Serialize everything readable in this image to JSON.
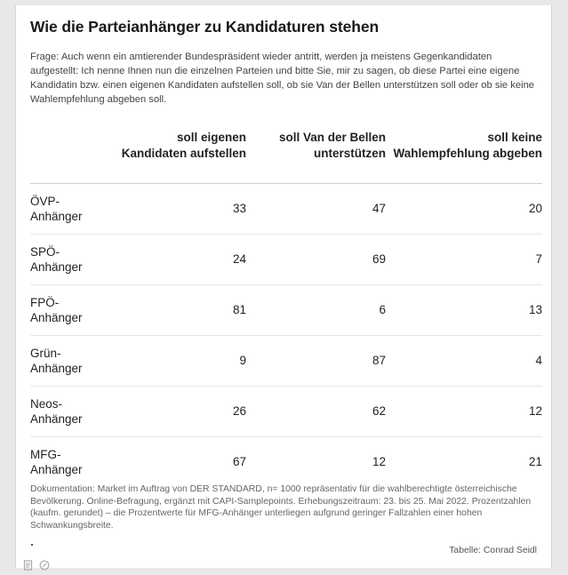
{
  "title": "Wie die Parteianhänger zu Kandidaturen stehen",
  "question": "Frage: Auch wenn ein amtierender Bundespräsident wieder antritt, werden ja meistens Gegenkandidaten aufgestellt: Ich nenne Ihnen nun die einzelnen Parteien und bitte Sie, mir zu sagen, ob diese Partei eine eigene Kandidatin bzw. einen eigenen Kandidaten aufstellen soll, ob sie Van der Bellen unterstützen soll oder ob sie keine Wahlempfehlung abgeben soll.",
  "documentation": "Dokumentation: Market im Auftrag von DER STANDARD, n= 1000 repräsentativ für die wahlberechtigte österreichische Bevölkerung. Online-Befragung, ergänzt mit CAPI-Samplepoints. Erhebungszeitraum: 23. bis 25. Mai 2022. Prozentzahlen (kaufm. gerundet) – die Prozentwerte für MFG-Anhänger unterliegen aufgrund geringer Fallzahlen einer hohen Schwankungsbreite.",
  "credit": "Tabelle: Conrad Seidl",
  "footer_icons": [
    "document-icon",
    "link-icon"
  ],
  "chart_data": {
    "type": "table",
    "columns": [
      "soll eigenen Kandidaten aufstellen",
      "soll Van der Bellen unterstützen",
      "soll keine Wahlempfehlung abgeben"
    ],
    "rows": [
      {
        "label_line1": "ÖVP-",
        "label_line2": "Anhänger",
        "values": [
          "33",
          "47",
          "20"
        ]
      },
      {
        "label_line1": "SPÖ-",
        "label_line2": "Anhänger",
        "values": [
          "24",
          "69",
          "7"
        ]
      },
      {
        "label_line1": "FPÖ-",
        "label_line2": "Anhänger",
        "values": [
          "81",
          "6",
          "13"
        ]
      },
      {
        "label_line1": "Grün-",
        "label_line2": "Anhänger",
        "values": [
          "9",
          "87",
          "4"
        ]
      },
      {
        "label_line1": "Neos-",
        "label_line2": "Anhänger",
        "values": [
          "26",
          "62",
          "12"
        ]
      },
      {
        "label_line1": "MFG-",
        "label_line2": "Anhänger",
        "values": [
          "67",
          "12",
          "21"
        ]
      }
    ]
  }
}
